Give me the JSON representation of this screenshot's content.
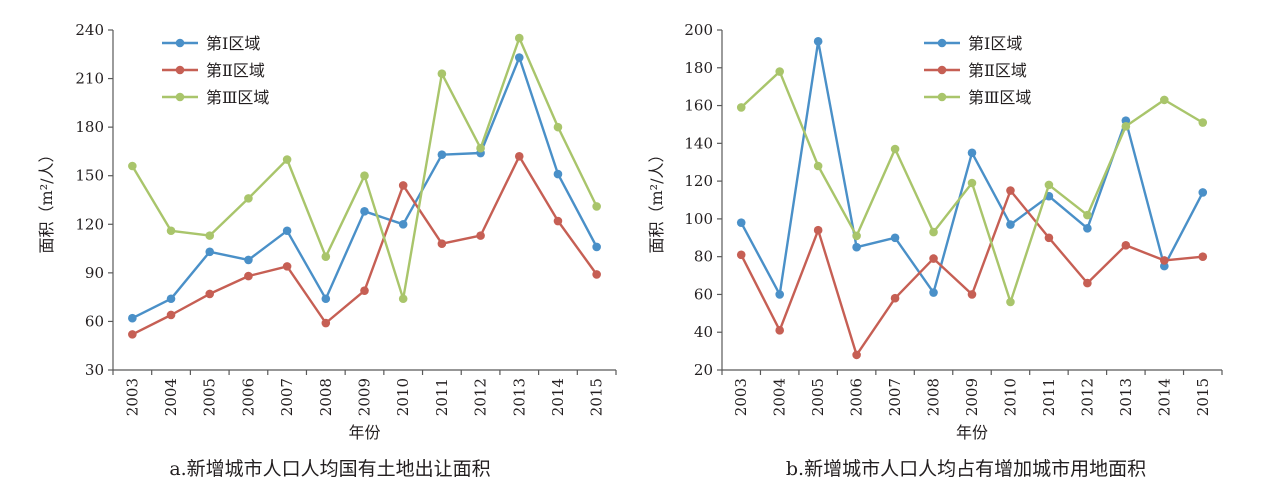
{
  "figure": {
    "palette": {
      "series_1": "#4a90c8",
      "series_2": "#c65f54",
      "series_3": "#a9c56b",
      "axis": "#595959"
    }
  },
  "chart_data": [
    {
      "type": "line",
      "caption": "a.新增城市人口人均国有土地出让面积",
      "xlabel": "年份",
      "ylabel": "面积（m²/人）",
      "x": [
        "2003",
        "2004",
        "2005",
        "2006",
        "2007",
        "2008",
        "2009",
        "2010",
        "2011",
        "2012",
        "2013",
        "2014",
        "2015"
      ],
      "ylim": [
        30,
        240
      ],
      "yticks": [
        30,
        60,
        90,
        120,
        150,
        180,
        210,
        240
      ],
      "grid": false,
      "legend_position": "top-left",
      "series": [
        {
          "name": "第Ⅰ区域",
          "values": [
            62,
            74,
            103,
            98,
            116,
            74,
            128,
            120,
            163,
            164,
            223,
            151,
            106
          ]
        },
        {
          "name": "第Ⅱ区域",
          "values": [
            52,
            64,
            77,
            88,
            94,
            59,
            79,
            144,
            108,
            113,
            162,
            122,
            89
          ]
        },
        {
          "name": "第Ⅲ区域",
          "values": [
            156,
            116,
            113,
            136,
            160,
            100,
            150,
            74,
            213,
            167,
            235,
            180,
            131
          ]
        }
      ]
    },
    {
      "type": "line",
      "caption": "b.新增城市人口人均占有增加城市用地面积",
      "xlabel": "年份",
      "ylabel": "面积（m²/人）",
      "x": [
        "2003",
        "2004",
        "2005",
        "2006",
        "2007",
        "2008",
        "2009",
        "2010",
        "2011",
        "2012",
        "2013",
        "2014",
        "2015"
      ],
      "ylim": [
        20,
        200
      ],
      "yticks": [
        20,
        40,
        60,
        80,
        100,
        120,
        140,
        160,
        180,
        200
      ],
      "grid": false,
      "legend_position": "top-center",
      "series": [
        {
          "name": "第Ⅰ区域",
          "values": [
            98,
            60,
            194,
            85,
            90,
            61,
            135,
            97,
            112,
            95,
            152,
            75,
            114
          ]
        },
        {
          "name": "第Ⅱ区域",
          "values": [
            81,
            41,
            94,
            28,
            58,
            79,
            60,
            115,
            90,
            66,
            86,
            78,
            80
          ]
        },
        {
          "name": "第Ⅲ区域",
          "values": [
            159,
            178,
            128,
            91,
            137,
            93,
            119,
            56,
            118,
            102,
            149,
            163,
            151
          ]
        }
      ]
    }
  ]
}
